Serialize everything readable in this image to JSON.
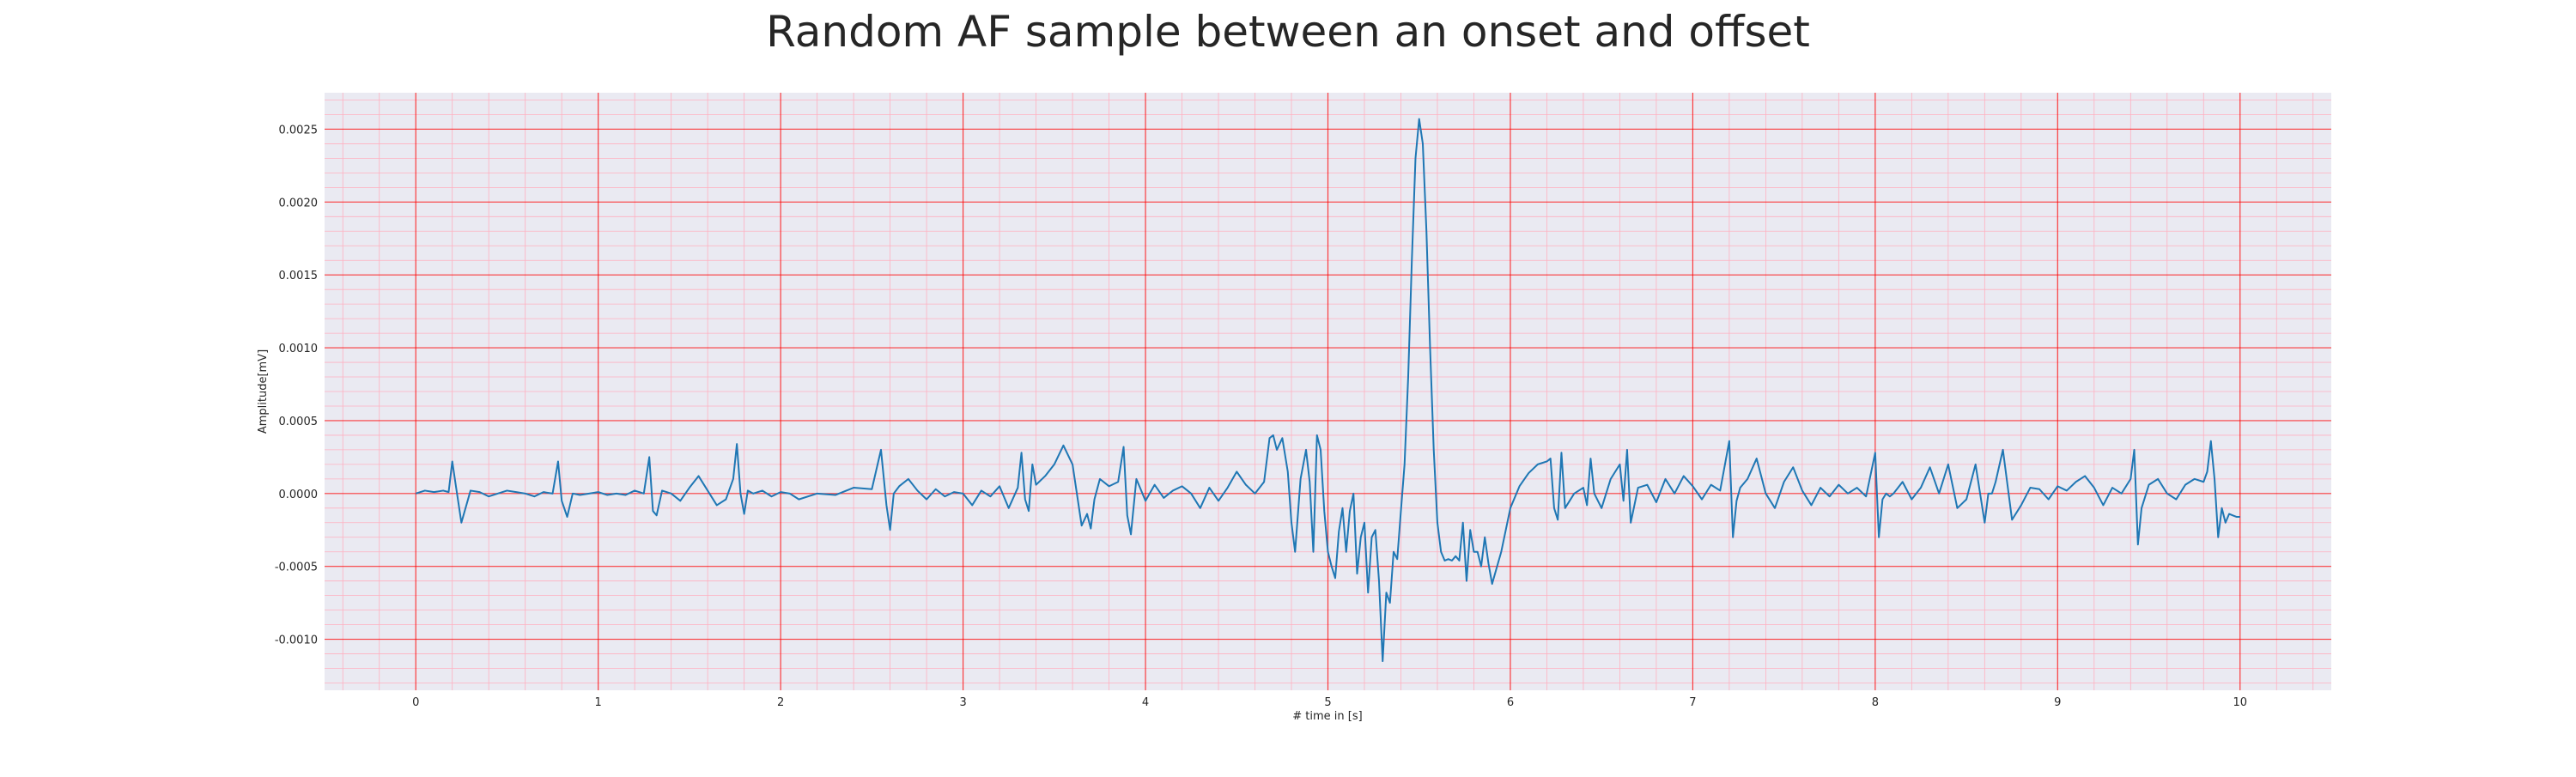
{
  "chart_data": {
    "type": "line",
    "title": "Random AF sample between an onset and offset",
    "xlabel": "# time in [s]",
    "ylabel": "Amplitude[mV]",
    "xlim": [
      -0.5,
      10.5
    ],
    "ylim": [
      -0.00135,
      0.00275
    ],
    "x_ticks": [
      "0",
      "1",
      "2",
      "3",
      "4",
      "5",
      "6",
      "7",
      "8",
      "9",
      "10"
    ],
    "y_ticks": [
      "-0.0010",
      "-0.0005",
      "0.0000",
      "0.0005",
      "0.0010",
      "0.0015",
      "0.0020",
      "0.0025"
    ],
    "grid": "major and minor",
    "colors": {
      "background": "#eaeaf2",
      "major_grid": "#ff0000",
      "minor_grid": "#ffb0c0",
      "line": "#1f77b4"
    },
    "series": [
      {
        "x": [
          0.0,
          0.05,
          0.1,
          0.15,
          0.18,
          0.2,
          0.22,
          0.25,
          0.3,
          0.35,
          0.4,
          0.45,
          0.5,
          0.55,
          0.6,
          0.65,
          0.7,
          0.75,
          0.78,
          0.8,
          0.83,
          0.86,
          0.9,
          0.95,
          1.0,
          1.05,
          1.1,
          1.15,
          1.2,
          1.25,
          1.28,
          1.3,
          1.32,
          1.35,
          1.4,
          1.45,
          1.5,
          1.55,
          1.6,
          1.65,
          1.7,
          1.74,
          1.76,
          1.78,
          1.8,
          1.82,
          1.85,
          1.9,
          1.95,
          2.0,
          2.05,
          2.1,
          2.2,
          2.3,
          2.4,
          2.5,
          2.55,
          2.58,
          2.6,
          2.62,
          2.65,
          2.7,
          2.75,
          2.8,
          2.85,
          2.9,
          2.95,
          3.0,
          3.05,
          3.1,
          3.15,
          3.2,
          3.25,
          3.3,
          3.32,
          3.34,
          3.36,
          3.38,
          3.4,
          3.45,
          3.5,
          3.55,
          3.6,
          3.65,
          3.68,
          3.7,
          3.72,
          3.75,
          3.8,
          3.85,
          3.88,
          3.9,
          3.92,
          3.95,
          4.0,
          4.05,
          4.1,
          4.15,
          4.2,
          4.25,
          4.3,
          4.35,
          4.4,
          4.45,
          4.5,
          4.55,
          4.6,
          4.65,
          4.68,
          4.7,
          4.72,
          4.75,
          4.78,
          4.8,
          4.82,
          4.85,
          4.88,
          4.9,
          4.92,
          4.94,
          4.96,
          4.98,
          5.0,
          5.02,
          5.04,
          5.06,
          5.08,
          5.1,
          5.12,
          5.14,
          5.16,
          5.18,
          5.2,
          5.22,
          5.24,
          5.26,
          5.28,
          5.3,
          5.32,
          5.34,
          5.36,
          5.38,
          5.4,
          5.42,
          5.44,
          5.46,
          5.48,
          5.5,
          5.52,
          5.54,
          5.56,
          5.58,
          5.6,
          5.62,
          5.64,
          5.66,
          5.68,
          5.7,
          5.72,
          5.74,
          5.76,
          5.78,
          5.8,
          5.82,
          5.84,
          5.86,
          5.88,
          5.9,
          5.95,
          6.0,
          6.05,
          6.1,
          6.15,
          6.2,
          6.22,
          6.24,
          6.26,
          6.28,
          6.3,
          6.35,
          6.4,
          6.42,
          6.44,
          6.46,
          6.5,
          6.55,
          6.6,
          6.62,
          6.64,
          6.66,
          6.7,
          6.75,
          6.8,
          6.85,
          6.9,
          6.95,
          7.0,
          7.05,
          7.1,
          7.15,
          7.2,
          7.22,
          7.24,
          7.26,
          7.3,
          7.35,
          7.4,
          7.45,
          7.5,
          7.55,
          7.6,
          7.65,
          7.7,
          7.75,
          7.8,
          7.85,
          7.9,
          7.95,
          8.0,
          8.02,
          8.04,
          8.06,
          8.08,
          8.1,
          8.15,
          8.2,
          8.25,
          8.3,
          8.35,
          8.4,
          8.45,
          8.5,
          8.55,
          8.6,
          8.62,
          8.64,
          8.66,
          8.7,
          8.75,
          8.8,
          8.85,
          8.9,
          8.95,
          9.0,
          9.05,
          9.1,
          9.15,
          9.2,
          9.25,
          9.3,
          9.35,
          9.4,
          9.42,
          9.44,
          9.46,
          9.5,
          9.55,
          9.6,
          9.65,
          9.7,
          9.75,
          9.8,
          9.82,
          9.84,
          9.86,
          9.88,
          9.9,
          9.92,
          9.94,
          9.96,
          9.98,
          10.0
        ],
        "values": [
          0.0,
          2e-05,
          1e-05,
          2e-05,
          1e-05,
          0.00022,
          5e-05,
          -0.0002,
          2e-05,
          1e-05,
          -2e-05,
          0.0,
          2e-05,
          1e-05,
          0.0,
          -2e-05,
          1e-05,
          0.0,
          0.00022,
          -5e-05,
          -0.00016,
          0.0,
          -1e-05,
          0.0,
          1e-05,
          -1e-05,
          0.0,
          -1e-05,
          2e-05,
          0.0,
          0.00025,
          -0.00012,
          -0.00015,
          2e-05,
          0.0,
          -5e-05,
          4e-05,
          0.00012,
          2e-05,
          -8e-05,
          -4e-05,
          0.0001,
          0.00034,
          0.0,
          -0.00014,
          2e-05,
          0.0,
          2e-05,
          -2e-05,
          1e-05,
          0.0,
          -4e-05,
          0.0,
          -1e-05,
          4e-05,
          3e-05,
          0.0003,
          -8e-05,
          -0.00025,
          0.0,
          5e-05,
          0.0001,
          2e-05,
          -4e-05,
          3e-05,
          -2e-05,
          1e-05,
          0.0,
          -8e-05,
          2e-05,
          -2e-05,
          5e-05,
          -0.0001,
          4e-05,
          0.00028,
          -4e-05,
          -0.00012,
          0.0002,
          6e-05,
          0.00012,
          0.0002,
          0.00033,
          0.0002,
          -0.00022,
          -0.00014,
          -0.00024,
          -4e-05,
          0.0001,
          5e-05,
          8e-05,
          0.00032,
          -0.00015,
          -0.00028,
          0.0001,
          -5e-05,
          6e-05,
          -3e-05,
          2e-05,
          5e-05,
          0.0,
          -0.0001,
          4e-05,
          -5e-05,
          4e-05,
          0.00015,
          6e-05,
          0.0,
          8e-05,
          0.00038,
          0.0004,
          0.0003,
          0.00038,
          0.00015,
          -0.0002,
          -0.0004,
          0.0001,
          0.0003,
          8e-05,
          -0.0004,
          0.0004,
          0.0003,
          -0.00012,
          -0.0004,
          -0.0005,
          -0.00058,
          -0.00026,
          -0.0001,
          -0.0004,
          -0.00012,
          0.0,
          -0.00055,
          -0.0003,
          -0.0002,
          -0.00068,
          -0.0003,
          -0.00025,
          -0.0006,
          -0.00115,
          -0.00068,
          -0.00075,
          -0.0004,
          -0.00045,
          -0.00012,
          0.0002,
          0.0008,
          0.0016,
          0.0023,
          0.00257,
          0.0024,
          0.0018,
          0.001,
          0.0003,
          -0.0002,
          -0.0004,
          -0.00046,
          -0.00045,
          -0.00046,
          -0.00043,
          -0.00046,
          -0.0002,
          -0.0006,
          -0.00025,
          -0.0004,
          -0.0004,
          -0.0005,
          -0.0003,
          -0.00048,
          -0.00062,
          -0.0004,
          -0.0001,
          5e-05,
          0.00014,
          0.0002,
          0.00022,
          0.00024,
          -0.0001,
          -0.00018,
          0.00028,
          -0.0001,
          0.0,
          4e-05,
          -8e-05,
          0.00024,
          0.0,
          -0.0001,
          0.0001,
          0.0002,
          -5e-05,
          0.0003,
          -0.0002,
          4e-05,
          6e-05,
          -6e-05,
          0.0001,
          0.0,
          0.00012,
          5e-05,
          -4e-05,
          6e-05,
          2e-05,
          0.00036,
          -0.0003,
          -5e-05,
          4e-05,
          0.0001,
          0.00024,
          0.0,
          -0.0001,
          8e-05,
          0.00018,
          2e-05,
          -8e-05,
          4e-05,
          -2e-05,
          6e-05,
          0.0,
          4e-05,
          -2e-05,
          0.00028,
          -0.0003,
          -4e-05,
          0.0,
          -2e-05,
          0.0,
          8e-05,
          -4e-05,
          4e-05,
          0.00018,
          0.0,
          0.0002,
          -0.0001,
          -4e-05,
          0.0002,
          -0.0002,
          0.0,
          0.0,
          8e-05,
          0.0003,
          -0.00018,
          -8e-05,
          4e-05,
          3e-05,
          -4e-05,
          5e-05,
          2e-05,
          8e-05,
          0.00012,
          4e-05,
          -8e-05,
          4e-05,
          0.0,
          0.0001,
          0.0003,
          -0.00035,
          -0.0001,
          6e-05,
          0.0001,
          0.0,
          -4e-05,
          6e-05,
          0.0001,
          8e-05,
          0.00015,
          0.00036,
          0.0001,
          -0.0003,
          -0.0001,
          -0.0002,
          -0.00014,
          -0.00015,
          -0.00016,
          -0.00016
        ]
      }
    ]
  }
}
